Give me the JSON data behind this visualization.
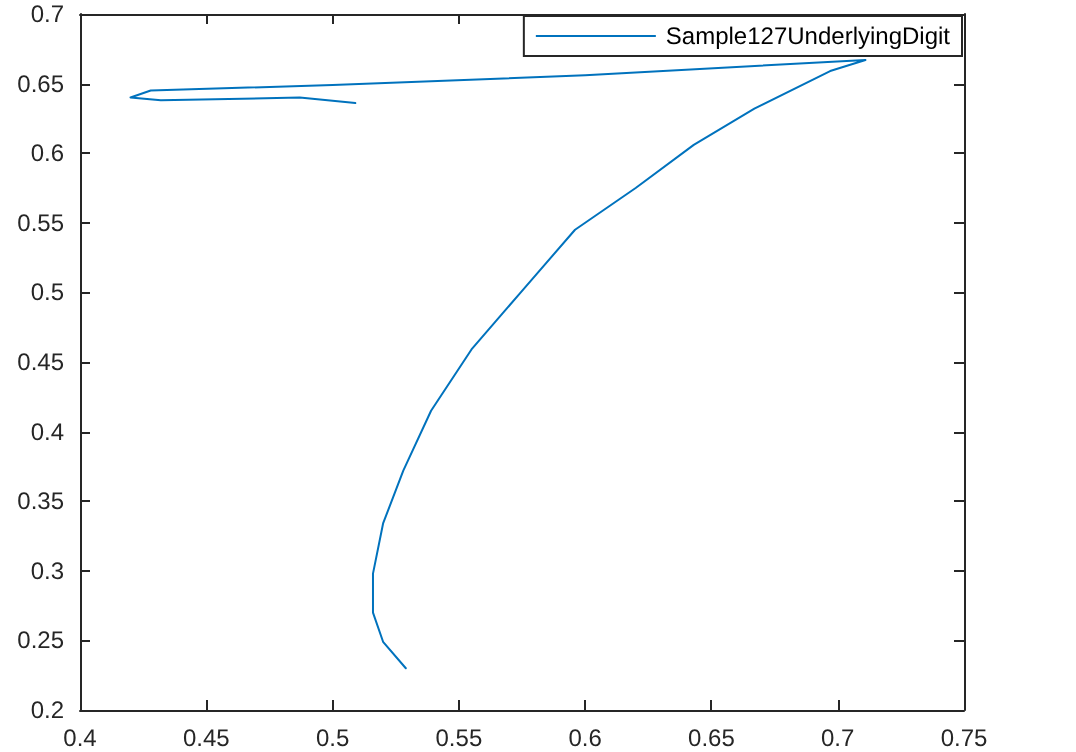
{
  "chart_data": {
    "type": "line",
    "xlim": [
      0.4,
      0.75
    ],
    "ylim": [
      0.2,
      0.7
    ],
    "xticks": [
      0.4,
      0.45,
      0.5,
      0.55,
      0.6,
      0.65,
      0.7,
      0.75
    ],
    "yticks": [
      0.2,
      0.25,
      0.3,
      0.35,
      0.4,
      0.45,
      0.5,
      0.55,
      0.6,
      0.65,
      0.7
    ],
    "grid": false,
    "legend": "top right",
    "marker": "none",
    "line_style": "solid",
    "series": [
      {
        "name": "Sample127UnderlyingDigit",
        "color": "#0072bd",
        "x": [
          0.529,
          0.52,
          0.516,
          0.516,
          0.52,
          0.528,
          0.539,
          0.555,
          0.574,
          0.596,
          0.62,
          0.643,
          0.667,
          0.697,
          0.711,
          0.6,
          0.5,
          0.428,
          0.42,
          0.432,
          0.487,
          0.509
        ],
        "values": [
          0.23,
          0.249,
          0.27,
          0.298,
          0.334,
          0.372,
          0.415,
          0.459,
          0.499,
          0.545,
          0.575,
          0.606,
          0.632,
          0.659,
          0.667,
          0.656,
          0.649,
          0.645,
          0.64,
          0.638,
          0.64,
          0.636
        ]
      }
    ]
  }
}
